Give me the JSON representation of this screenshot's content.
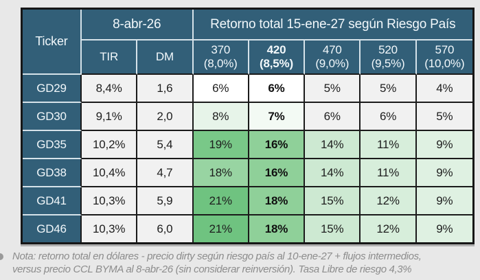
{
  "colors": {
    "header_bg": "#325F78",
    "header_text": "#F2F8FB",
    "border_dark": "#1A1A1A",
    "border_light": "#D6E3EA",
    "cell_gray": "#F1F1F1",
    "green_max": "#6FC380",
    "note_text": "#8C8C8C"
  },
  "table": {
    "header": {
      "ticker": "Ticker",
      "date_group": "8-abr-26",
      "return_group": "Retorno total 15-ene-27 según Riesgo País",
      "tir": "TIR",
      "dm": "DM",
      "scenarios": [
        {
          "bp": "370",
          "rate": "(8,0%)",
          "bold": false
        },
        {
          "bp": "420",
          "rate": "(8,5%)",
          "bold": true
        },
        {
          "bp": "470",
          "rate": "(9,0%)",
          "bold": false
        },
        {
          "bp": "520",
          "rate": "(9,5%)",
          "bold": false
        },
        {
          "bp": "570",
          "rate": "(10,0%)",
          "bold": false
        }
      ]
    },
    "rows": [
      {
        "ticker": "GD29",
        "tir": "8,4%",
        "dm": "1,6",
        "returns": [
          {
            "value": "6%",
            "bg": "#FFFFFF",
            "bold": false
          },
          {
            "value": "6%",
            "bg": "#FFFFFF",
            "bold": true
          },
          {
            "value": "5%",
            "bg": "#F1F1F1",
            "bold": false
          },
          {
            "value": "5%",
            "bg": "#F1F1F1",
            "bold": false
          },
          {
            "value": "4%",
            "bg": "#F1F1F1",
            "bold": false
          }
        ]
      },
      {
        "ticker": "GD30",
        "tir": "9,1%",
        "dm": "2,0",
        "returns": [
          {
            "value": "8%",
            "bg": "#E7F4E9",
            "bold": false
          },
          {
            "value": "7%",
            "bg": "#F3FAF4",
            "bold": true
          },
          {
            "value": "6%",
            "bg": "#F1F1F1",
            "bold": false
          },
          {
            "value": "6%",
            "bg": "#F1F1F1",
            "bold": false
          },
          {
            "value": "5%",
            "bg": "#F1F1F1",
            "bold": false
          }
        ]
      },
      {
        "ticker": "GD35",
        "tir": "10,2%",
        "dm": "5,4",
        "returns": [
          {
            "value": "19%",
            "bg": "#79C888",
            "bold": false
          },
          {
            "value": "16%",
            "bg": "#8FD099",
            "bold": true
          },
          {
            "value": "14%",
            "bg": "#CDE9D2",
            "bold": false
          },
          {
            "value": "11%",
            "bg": "#D7EEDB",
            "bold": false
          },
          {
            "value": "9%",
            "bg": "#DFF1E2",
            "bold": false
          }
        ]
      },
      {
        "ticker": "GD38",
        "tir": "10,4%",
        "dm": "4,7",
        "returns": [
          {
            "value": "18%",
            "bg": "#98D4A2",
            "bold": false
          },
          {
            "value": "16%",
            "bg": "#8FD099",
            "bold": true
          },
          {
            "value": "14%",
            "bg": "#CDE9D2",
            "bold": false
          },
          {
            "value": "11%",
            "bg": "#D7EEDB",
            "bold": false
          },
          {
            "value": "9%",
            "bg": "#DFF1E2",
            "bold": false
          }
        ]
      },
      {
        "ticker": "GD41",
        "tir": "10,3%",
        "dm": "5,9",
        "returns": [
          {
            "value": "21%",
            "bg": "#6FC380",
            "bold": false
          },
          {
            "value": "18%",
            "bg": "#8FD099",
            "bold": true
          },
          {
            "value": "15%",
            "bg": "#CDE9D2",
            "bold": false
          },
          {
            "value": "12%",
            "bg": "#D7EEDB",
            "bold": false
          },
          {
            "value": "9%",
            "bg": "#DFF1E2",
            "bold": false
          }
        ]
      },
      {
        "ticker": "GD46",
        "tir": "10,3%",
        "dm": "6,0",
        "returns": [
          {
            "value": "21%",
            "bg": "#6FC380",
            "bold": false
          },
          {
            "value": "18%",
            "bg": "#8FD099",
            "bold": true
          },
          {
            "value": "15%",
            "bg": "#CDE9D2",
            "bold": false
          },
          {
            "value": "12%",
            "bg": "#D7EEDB",
            "bold": false
          },
          {
            "value": "9%",
            "bg": "#DFF1E2",
            "bold": false
          }
        ]
      }
    ]
  },
  "note": {
    "lines": [
      "Nota: retorno total en dólares - precio dirty según riesgo país al 10-ene-27 + flujos intermedios,",
      "versus precio CCL BYMA al 8-abr-26 (sin considerar reinversión). Tasa Libre de riesgo 4,3%"
    ]
  },
  "chart_data": {
    "type": "table",
    "title": "Retorno total 15-ene-27 según Riesgo País",
    "columns": [
      "Ticker",
      "TIR (8-abr-26)",
      "DM (8-abr-26)",
      "370 (8,0%)",
      "420 (8,5%)",
      "470 (9,0%)",
      "520 (9,5%)",
      "570 (10,0%)"
    ],
    "rows": [
      [
        "GD29",
        "8,4%",
        "1,6",
        "6%",
        "6%",
        "5%",
        "5%",
        "4%"
      ],
      [
        "GD30",
        "9,1%",
        "2,0",
        "8%",
        "7%",
        "6%",
        "6%",
        "5%"
      ],
      [
        "GD35",
        "10,2%",
        "5,4",
        "19%",
        "16%",
        "14%",
        "11%",
        "9%"
      ],
      [
        "GD38",
        "10,4%",
        "4,7",
        "18%",
        "16%",
        "14%",
        "11%",
        "9%"
      ],
      [
        "GD41",
        "10,3%",
        "5,9",
        "21%",
        "18%",
        "15%",
        "12%",
        "9%"
      ],
      [
        "GD46",
        "10,3%",
        "6,0",
        "21%",
        "18%",
        "15%",
        "12%",
        "9%"
      ]
    ],
    "highlighted_column": "420 (8,5%)",
    "heatmap": true,
    "note": "Nota: retorno total en dólares - precio dirty según riesgo país al 10-ene-27 + flujos intermedios, versus precio CCL BYMA al 8-abr-26 (sin considerar reinversión). Tasa Libre de riesgo 4,3%"
  }
}
